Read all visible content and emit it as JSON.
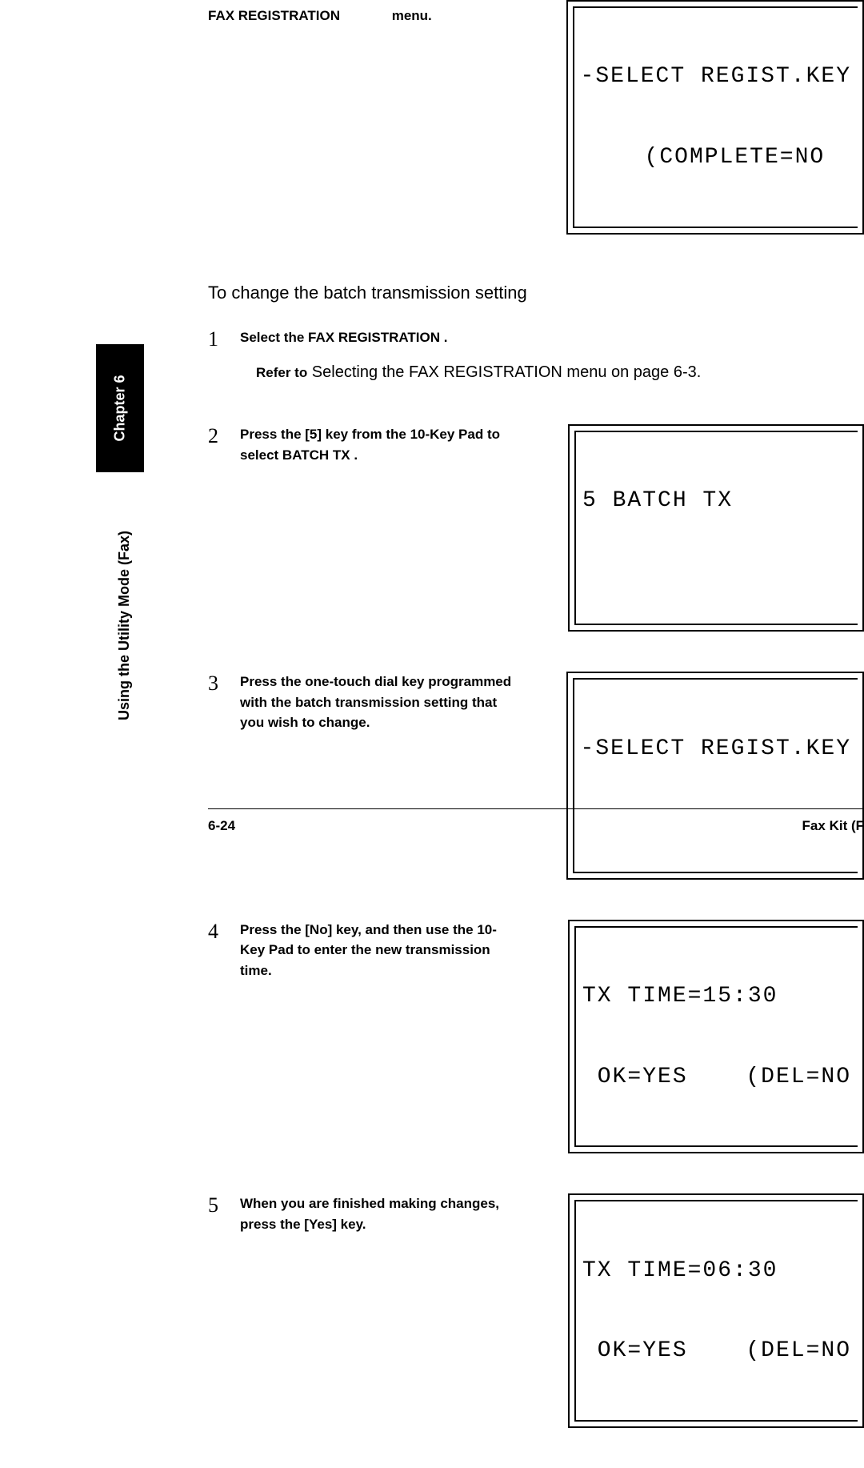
{
  "header": {
    "title_bold": "FAX REGISTRATION",
    "title_plain": "menu."
  },
  "lcd_top": {
    "line1": "-SELECT REGIST.KEY",
    "line2": "(COMPLETE=NO"
  },
  "intro": "To change the batch transmission setting",
  "steps": [
    {
      "num": "1",
      "instr_prefix": "Select the ",
      "instr_bold": "FAX REGISTRATION",
      "instr_suffix": " .",
      "sub_bold": "Refer to",
      "sub_plain": " Selecting the  FAX REGISTRATION  menu  on page 6-3."
    },
    {
      "num": "2",
      "instr": "Press the [5] key from the 10-Key Pad to select  BATCH TX .",
      "lcd": {
        "line1": "5 BATCH TX",
        "line2": ""
      }
    },
    {
      "num": "3",
      "instr": "Press the one-touch dial key programmed with the batch transmission setting that you wish to change.",
      "lcd": {
        "line1": "-SELECT REGIST.KEY",
        "line2": ""
      }
    },
    {
      "num": "4",
      "instr": "Press the [No] key, and then use the 10-Key Pad to enter the new transmission time.",
      "lcd": {
        "line1": "TX TIME=15:30",
        "ok": " OK=YES",
        "del": "(DEL=NO"
      }
    },
    {
      "num": "5",
      "instr": "When you are finished making changes, press the [Yes] key.",
      "lcd": {
        "line1": "TX TIME=06:30",
        "ok": " OK=YES",
        "del": "(DEL=NO"
      }
    }
  ],
  "chapter_tab": "Chapter 6",
  "side_label": "Using the Utility Mode (Fax)",
  "footer": {
    "page": "6-24",
    "right": "Fax Kit (F"
  },
  "colors": {
    "bg": "#ffffff",
    "fg": "#000000"
  }
}
